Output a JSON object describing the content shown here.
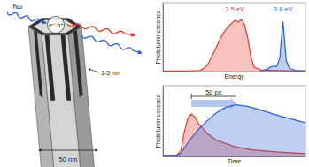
{
  "diagram": {
    "labels": {
      "photon": "ħω",
      "electron": "e⁻",
      "hole": "h⁺",
      "shell": "1-5 nm",
      "diameter": "50 nm"
    }
  },
  "chart_data": [
    {
      "type": "area",
      "x_label": "Energy",
      "y_label": "Photoluminescence",
      "tick_labels": false,
      "xlim": [
        3.05,
        3.94
      ],
      "ylim": [
        0,
        1.25
      ],
      "series": [
        {
          "color": "#e8392a",
          "x": [
            3.05,
            3.2,
            3.28,
            3.3,
            3.32,
            3.34,
            3.36,
            3.38,
            3.4,
            3.42,
            3.44,
            3.46,
            3.48,
            3.5,
            3.52,
            3.54,
            3.56,
            3.58,
            3.6,
            3.62,
            3.66,
            3.75,
            3.94
          ],
          "y": [
            0.01,
            0.01,
            0.02,
            0.05,
            0.1,
            0.18,
            0.3,
            0.42,
            0.55,
            0.66,
            0.75,
            0.82,
            0.88,
            0.93,
            0.9,
            0.95,
            0.85,
            0.6,
            0.25,
            0.08,
            0.03,
            0.02,
            0.01
          ]
        },
        {
          "color": "#2a5fd6",
          "x": [
            3.66,
            3.7,
            3.72,
            3.74,
            3.76,
            3.78,
            3.79,
            3.8,
            3.81,
            3.82,
            3.84,
            3.88,
            3.94
          ],
          "y": [
            0.01,
            0.04,
            0.08,
            0.1,
            0.09,
            0.25,
            0.6,
            0.9,
            0.55,
            0.2,
            0.06,
            0.02,
            0.01
          ]
        }
      ],
      "annotations": [
        {
          "text": "3.5 eV",
          "x": 3.5,
          "color": "#e8392a"
        },
        {
          "text": "3.8 eV",
          "x": 3.8,
          "color": "#2a5fd6"
        }
      ]
    },
    {
      "type": "area",
      "x_label": "Time",
      "y_label": "Photoluminescence",
      "tick_labels": false,
      "xlim": [
        0,
        160
      ],
      "ylim": [
        0,
        1.3
      ],
      "series": [
        {
          "color": "#e8392a",
          "x": [
            0,
            15,
            20,
            24,
            28,
            32,
            36,
            40,
            50,
            60,
            80,
            100,
            130,
            160
          ],
          "y": [
            0.02,
            0.02,
            0.1,
            0.45,
            0.7,
            0.78,
            0.72,
            0.6,
            0.42,
            0.3,
            0.18,
            0.12,
            0.08,
            0.05
          ]
        },
        {
          "color": "#2a5fd6",
          "x": [
            0,
            15,
            20,
            24,
            30,
            40,
            50,
            60,
            70,
            82,
            95,
            110,
            130,
            160
          ],
          "y": [
            0.02,
            0.02,
            0.05,
            0.15,
            0.3,
            0.5,
            0.66,
            0.8,
            0.9,
            0.95,
            0.92,
            0.85,
            0.75,
            0.62
          ]
        }
      ],
      "annotations": [
        {
          "text": "50 ps",
          "x_start": 32,
          "x_end": 82
        }
      ]
    }
  ]
}
